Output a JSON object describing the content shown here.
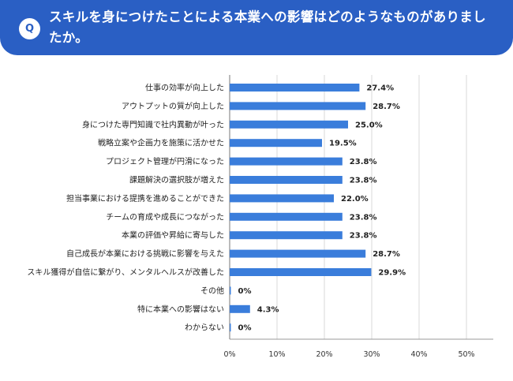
{
  "header": {
    "badge": "Q",
    "title": "スキルを身につけたことによる本業への影響はどのようなものがありましたか。"
  },
  "colors": {
    "header": "#2a5fc4",
    "bar": "#3a7ddb",
    "grid": "#d9d9d9"
  },
  "chart_data": {
    "type": "bar",
    "orientation": "horizontal",
    "categories": [
      "仕事の効率が向上した",
      "アウトプットの質が向上した",
      "身につけた専門知識で社内異動が叶った",
      "戦略立案や企画力を施策に活かせた",
      "プロジェクト管理が円滑になった",
      "課題解決の選択肢が増えた",
      "担当事業における提携を進めることができた",
      "チームの育成や成長につながった",
      "本業の評価や昇給に寄与した",
      "自己成長が本業における挑戦に影響を与えた",
      "スキル獲得が自信に繋がり、メンタルヘルスが改善した",
      "その他",
      "特に本業への影響はない",
      "わからない"
    ],
    "values": [
      27.4,
      28.7,
      25.0,
      19.5,
      23.8,
      23.8,
      22.0,
      23.8,
      23.8,
      28.7,
      29.9,
      0,
      4.3,
      0
    ],
    "value_labels": [
      "27.4%",
      "28.7%",
      "25.0%",
      "19.5%",
      "23.8%",
      "23.8%",
      "22.0%",
      "23.8%",
      "23.8%",
      "28.7%",
      "29.9%",
      "0%",
      "4.3%",
      "0%"
    ],
    "xlim": [
      0,
      55
    ],
    "ticks": [
      0,
      10,
      20,
      30,
      40,
      50
    ],
    "tick_labels": [
      "0%",
      "10%",
      "20%",
      "30%",
      "40%",
      "50%"
    ],
    "grid": true
  }
}
